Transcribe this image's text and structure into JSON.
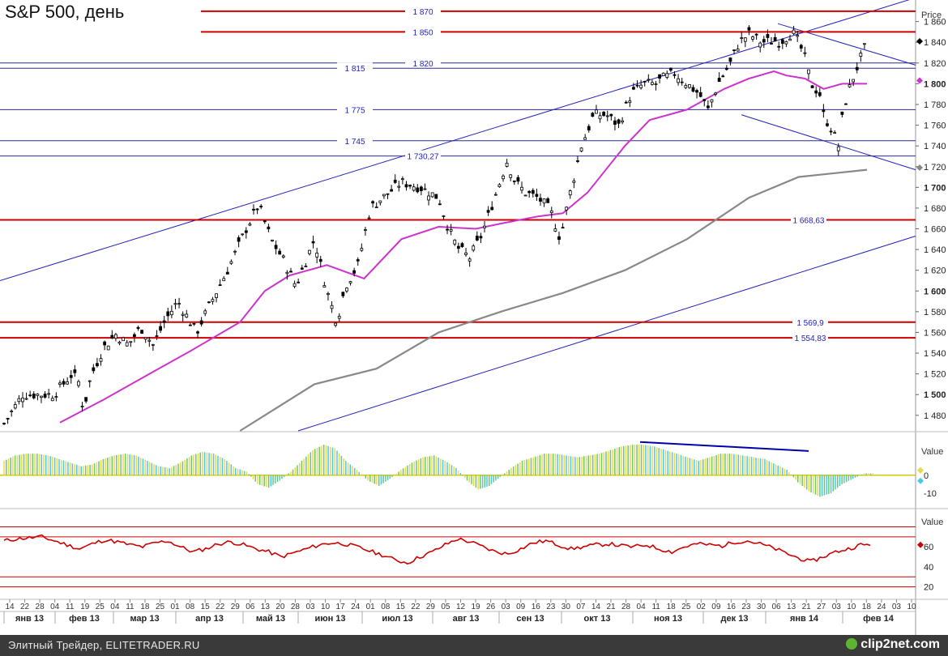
{
  "header": {
    "title": "S&P 500, день"
  },
  "footer": {
    "credit": "Элитный Трейдер, ELITETRADER.RU",
    "logo": "clip2net.com"
  },
  "colors": {
    "price": "#000000",
    "ma_short": "#cc33cc",
    "ma_long": "#888888",
    "channel": "#2222bb",
    "resistance": "#cc0000",
    "support_blue": "#2a2a99",
    "macd_green": "#6ac86a",
    "macd_yellow": "#e8d94a",
    "macd_cyan": "#4ac8e8",
    "rsi": "#cc0000",
    "divergence": "#0000aa"
  },
  "chart_data": [
    {
      "type": "line",
      "title": "S&P 500, день",
      "ylabel": "Price",
      "ylim": [
        1465,
        1873
      ],
      "yticks": [
        "1 480",
        "1 500",
        "1 520",
        "1 540",
        "1 560",
        "1 580",
        "1 600",
        "1 620",
        "1 640",
        "1 660",
        "1 680",
        "1 700",
        "1 720",
        "1 740",
        "1 760",
        "1 780",
        "1 800",
        "1 820",
        "1 840",
        "1 860"
      ],
      "x_day_labels": [
        "14",
        "22",
        "28",
        "04",
        "11",
        "19",
        "25",
        "04",
        "11",
        "18",
        "25",
        "01",
        "08",
        "15",
        "22",
        "29",
        "06",
        "13",
        "20",
        "28",
        "03",
        "10",
        "17",
        "24",
        "01",
        "08",
        "15",
        "22",
        "29",
        "05",
        "12",
        "19",
        "26",
        "03",
        "09",
        "16",
        "23",
        "30",
        "07",
        "14",
        "21",
        "28",
        "04",
        "11",
        "18",
        "25",
        "02",
        "09",
        "16",
        "23",
        "30",
        "06",
        "13",
        "21",
        "27",
        "03",
        "10",
        "18",
        "24",
        "03",
        "10"
      ],
      "x_month_labels": [
        "янв 13",
        "фев 13",
        "мар 13",
        "апр 13",
        "май 13",
        "июн 13",
        "июл 13",
        "авг 13",
        "сен 13",
        "окт 13",
        "ноя 13",
        "дек 13",
        "янв 14",
        "фев 14"
      ],
      "horizontal_levels": [
        {
          "label": "1 870",
          "value": 1870,
          "style": "red"
        },
        {
          "label": "1 850",
          "value": 1850,
          "style": "red"
        },
        {
          "label": "1 820",
          "value": 1820,
          "style": "blue"
        },
        {
          "label": "1 815",
          "value": 1815,
          "style": "blue"
        },
        {
          "label": "1 775",
          "value": 1775,
          "style": "blue"
        },
        {
          "label": "1 745",
          "value": 1745,
          "style": "blue"
        },
        {
          "label": "1 730,27",
          "value": 1730.27,
          "style": "blue"
        },
        {
          "label": "1 668,63",
          "value": 1668.63,
          "style": "red"
        },
        {
          "label": "1 569,9",
          "value": 1569.9,
          "style": "red"
        },
        {
          "label": "1 554,83",
          "value": 1554.83,
          "style": "red"
        }
      ],
      "price_series": [
        [
          0,
          1472
        ],
        [
          15,
          1500
        ],
        [
          40,
          1500
        ],
        [
          55,
          1520
        ],
        [
          60,
          1512
        ],
        [
          64,
          1485
        ],
        [
          70,
          1518
        ],
        [
          80,
          1545
        ],
        [
          90,
          1558
        ],
        [
          100,
          1548
        ],
        [
          110,
          1565
        ],
        [
          120,
          1548
        ],
        [
          130,
          1572
        ],
        [
          140,
          1590
        ],
        [
          155,
          1560
        ],
        [
          165,
          1585
        ],
        [
          180,
          1620
        ],
        [
          195,
          1660
        ],
        [
          205,
          1683
        ],
        [
          215,
          1650
        ],
        [
          225,
          1630
        ],
        [
          235,
          1605
        ],
        [
          250,
          1650
        ],
        [
          260,
          1600
        ],
        [
          268,
          1570
        ],
        [
          275,
          1605
        ],
        [
          285,
          1625
        ],
        [
          295,
          1680
        ],
        [
          310,
          1695
        ],
        [
          320,
          1705
        ],
        [
          335,
          1700
        ],
        [
          350,
          1690
        ],
        [
          358,
          1660
        ],
        [
          365,
          1642
        ],
        [
          375,
          1632
        ],
        [
          385,
          1655
        ],
        [
          395,
          1690
        ],
        [
          405,
          1725
        ],
        [
          412,
          1705
        ],
        [
          420,
          1695
        ],
        [
          430,
          1690
        ],
        [
          440,
          1678
        ],
        [
          448,
          1650
        ],
        [
          455,
          1690
        ],
        [
          465,
          1740
        ],
        [
          475,
          1770
        ],
        [
          485,
          1770
        ],
        [
          495,
          1760
        ],
        [
          505,
          1790
        ],
        [
          515,
          1800
        ],
        [
          525,
          1800
        ],
        [
          530,
          1805
        ],
        [
          540,
          1810
        ],
        [
          550,
          1800
        ],
        [
          560,
          1790
        ],
        [
          567,
          1775
        ],
        [
          575,
          1800
        ],
        [
          585,
          1820
        ],
        [
          592,
          1840
        ],
        [
          600,
          1848
        ],
        [
          610,
          1840
        ],
        [
          620,
          1842
        ],
        [
          625,
          1840
        ],
        [
          635,
          1850
        ],
        [
          640,
          1840
        ],
        [
          645,
          1825
        ],
        [
          650,
          1800
        ],
        [
          657,
          1790
        ],
        [
          660,
          1770
        ],
        [
          667,
          1755
        ],
        [
          672,
          1740
        ],
        [
          676,
          1775
        ],
        [
          682,
          1800
        ],
        [
          690,
          1825
        ],
        [
          695,
          1840
        ]
      ],
      "series": [
        {
          "name": "",
          "style": "ma_short",
          "values": [
            [
              45,
              1473
            ],
            [
              80,
              1495
            ],
            [
              120,
              1522
            ],
            [
              150,
              1542
            ],
            [
              190,
              1570
            ],
            [
              210,
              1600
            ],
            [
              230,
              1615
            ],
            [
              260,
              1625
            ],
            [
              290,
              1612
            ],
            [
              320,
              1650
            ],
            [
              350,
              1662
            ],
            [
              380,
              1660
            ],
            [
              400,
              1665
            ],
            [
              430,
              1672
            ],
            [
              450,
              1675
            ],
            [
              470,
              1695
            ],
            [
              500,
              1740
            ],
            [
              520,
              1765
            ],
            [
              550,
              1775
            ],
            [
              580,
              1795
            ],
            [
              600,
              1805
            ],
            [
              620,
              1812
            ],
            [
              630,
              1808
            ],
            [
              645,
              1805
            ],
            [
              660,
              1795
            ],
            [
              675,
              1800
            ],
            [
              695,
              1800
            ]
          ]
        },
        {
          "name": "",
          "style": "ma_long",
          "values": [
            [
              190,
              1465
            ],
            [
              250,
              1510
            ],
            [
              300,
              1525
            ],
            [
              350,
              1560
            ],
            [
              400,
              1580
            ],
            [
              450,
              1598
            ],
            [
              500,
              1620
            ],
            [
              550,
              1650
            ],
            [
              600,
              1690
            ],
            [
              640,
              1710
            ],
            [
              695,
              1717
            ]
          ]
        }
      ],
      "trendlines": [
        {
          "points": [
            [
              0,
              1610
            ],
            [
              1130,
              1883
            ]
          ],
          "label": ""
        },
        {
          "points": [
            [
              368,
              1465
            ],
            [
              1130,
              1653
            ]
          ],
          "label": ""
        },
        {
          "points": [
            [
              960,
              1858
            ],
            [
              1130,
              1818
            ]
          ],
          "label": ""
        },
        {
          "points": [
            [
              915,
              1770
            ],
            [
              1130,
              1717
            ]
          ],
          "label": ""
        }
      ],
      "last_value_markers": [
        {
          "value": 1841,
          "color": "#000000"
        },
        {
          "value": 1803,
          "color": "#cc33cc"
        },
        {
          "value": 1719,
          "color": "#888888"
        }
      ]
    },
    {
      "type": "bar",
      "title": "",
      "ylabel": "Value",
      "ylim": [
        -15,
        22
      ],
      "yticks": [
        "0",
        "-10"
      ],
      "values": [
        8,
        11,
        12,
        12,
        11,
        9,
        7,
        5,
        6,
        9,
        11,
        12,
        11,
        8,
        5,
        4,
        7,
        11,
        13,
        12,
        9,
        4,
        2,
        -5,
        -7,
        -3,
        2,
        8,
        14,
        17,
        15,
        8,
        3,
        -3,
        -6,
        -2,
        3,
        7,
        10,
        11,
        8,
        4,
        -3,
        -8,
        -6,
        -1,
        4,
        8,
        10,
        12,
        12,
        11,
        10,
        11,
        12,
        14,
        16,
        17,
        17,
        16,
        14,
        12,
        10,
        8,
        10,
        12,
        12,
        11,
        10,
        9,
        6,
        3,
        -4,
        -9,
        -12,
        -10,
        -5,
        -2,
        1
      ]
    },
    {
      "type": "line",
      "title": "",
      "ylabel": "Value",
      "ylim": [
        10,
        95
      ],
      "yticks": [
        "60",
        "40",
        "20"
      ],
      "horizontal_levels": [
        80,
        70,
        30,
        20
      ],
      "values": [
        66,
        68,
        69,
        70,
        66,
        62,
        58,
        63,
        67,
        65,
        62,
        60,
        64,
        66,
        60,
        55,
        58,
        63,
        65,
        62,
        58,
        55,
        50,
        54,
        58,
        62,
        64,
        63,
        60,
        56,
        52,
        47,
        44,
        50,
        55,
        62,
        68,
        65,
        60,
        55,
        53,
        58,
        64,
        66,
        62,
        58,
        60,
        62,
        63,
        61,
        60,
        62,
        58,
        55,
        60,
        63,
        62,
        61,
        65,
        66,
        63,
        59,
        54,
        49,
        45,
        50,
        55,
        58,
        62
      ]
    }
  ]
}
